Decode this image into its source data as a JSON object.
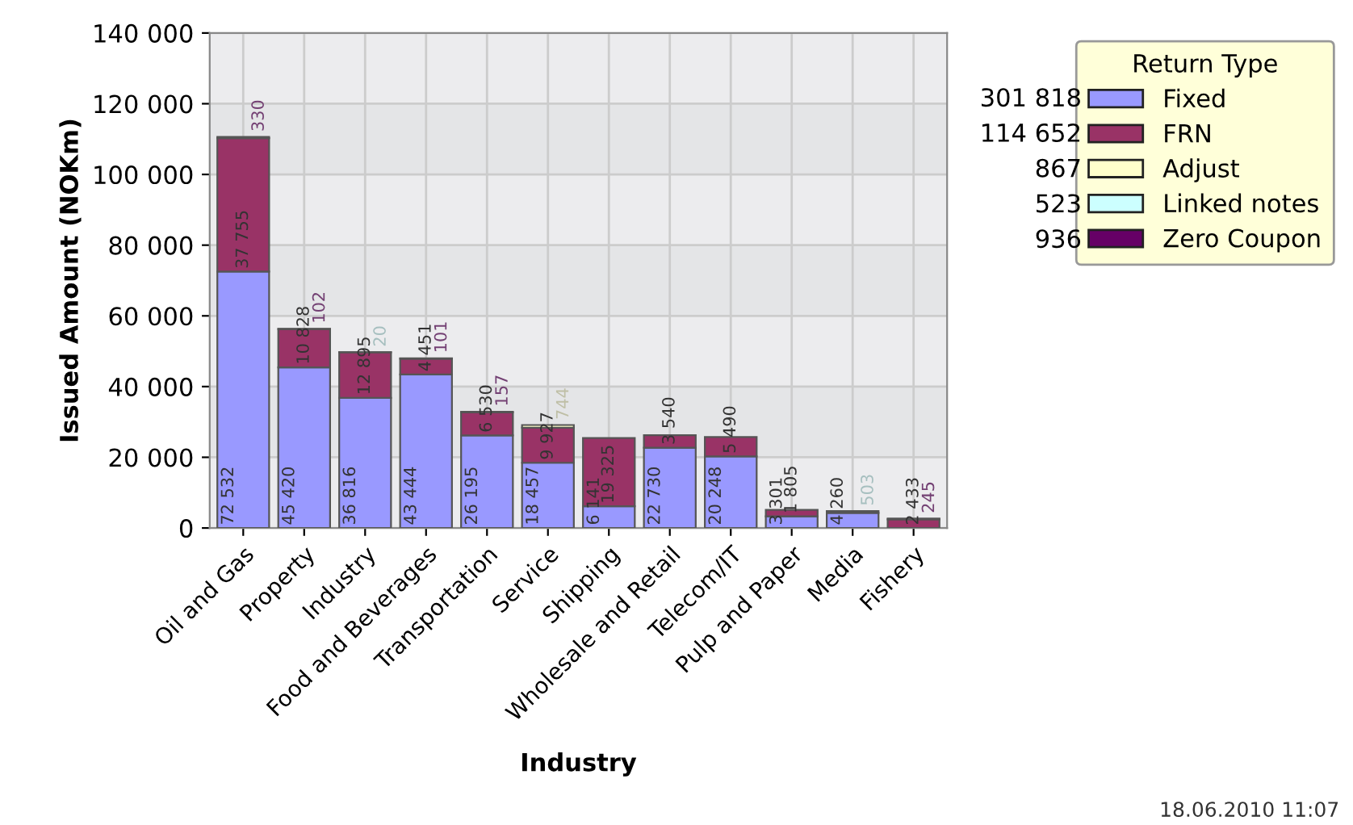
{
  "chart_data": {
    "type": "bar",
    "stacked": true,
    "xlabel": "Industry",
    "ylabel": "Issued Amount (NOKm)",
    "legend_title": "Return Type",
    "legend": "top right",
    "grid": true,
    "data_labels": true,
    "categories": [
      "Oil and Gas",
      "Property",
      "Industry",
      "Food and Beverages",
      "Transportation",
      "Service",
      "Shipping",
      "Wholesale and Retail",
      "Telecom/IT",
      "Pulp and Paper",
      "Media",
      "Fishery"
    ],
    "ylim": [
      0,
      140000
    ],
    "yticks": [
      {
        "value": 0,
        "label": "0"
      },
      {
        "value": 20000,
        "label": "20 000"
      },
      {
        "value": 40000,
        "label": "40 000"
      },
      {
        "value": 60000,
        "label": "60 000"
      },
      {
        "value": 80000,
        "label": "80 000"
      },
      {
        "value": 100000,
        "label": "100 000"
      },
      {
        "value": 120000,
        "label": "120 000"
      },
      {
        "value": 140000,
        "label": "140 000"
      }
    ],
    "series": [
      {
        "name": "Fixed",
        "color": "#9999ff",
        "values": [
          72532,
          45420,
          36816,
          43444,
          26195,
          18457,
          6141,
          22730,
          20248,
          3301,
          4260,
          null
        ]
      },
      {
        "name": "FRN",
        "color": "#993366",
        "values": [
          37755,
          10828,
          12895,
          4451,
          6530,
          9927,
          19325,
          3540,
          5490,
          1805,
          null,
          2433
        ]
      },
      {
        "name": "Adjust",
        "color": "#ffffcc",
        "values": [
          null,
          null,
          null,
          null,
          null,
          744,
          null,
          null,
          null,
          null,
          null,
          null
        ]
      },
      {
        "name": "Linked notes",
        "color": "#ccffff",
        "values": [
          null,
          null,
          20,
          null,
          null,
          null,
          null,
          null,
          null,
          null,
          503,
          null
        ]
      },
      {
        "name": "Zero Coupon",
        "color": "#660066",
        "values": [
          330,
          102,
          null,
          101,
          157,
          null,
          null,
          null,
          null,
          null,
          null,
          245
        ]
      }
    ],
    "annotations": [
      "301 818",
      "114 652",
      "867",
      "523",
      "936",
      "18.06.2010 11:07"
    ]
  }
}
